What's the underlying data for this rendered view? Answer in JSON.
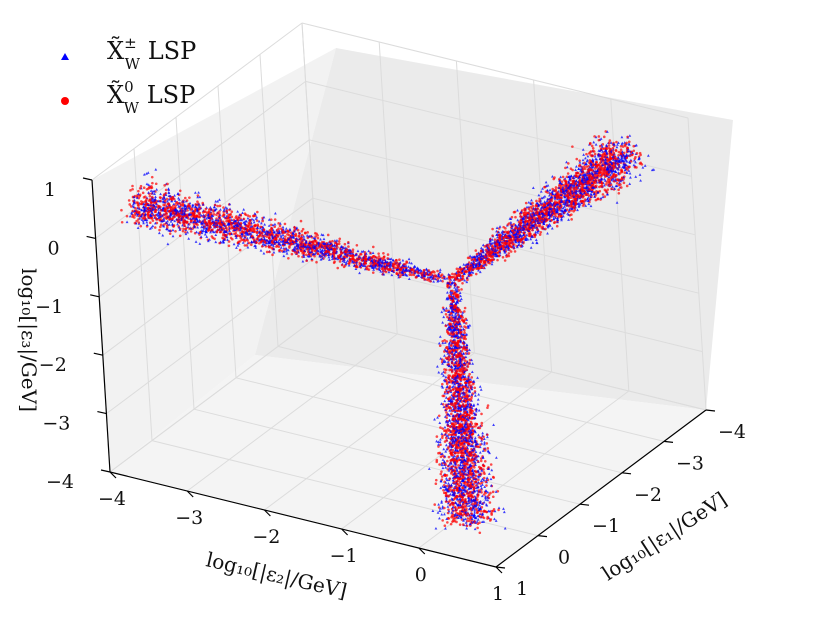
{
  "chart_data": {
    "type": "scatter",
    "projection": "3d",
    "grid": true,
    "legend_position": "top-left",
    "x_axis": {
      "label": "log₁₀[|ε₁|/GeV]",
      "range": [
        -4,
        1
      ],
      "ticks": [
        "−4",
        "−3",
        "−2",
        "−1",
        "0",
        "1"
      ]
    },
    "y_axis": {
      "label": "log₁₀[|ε₂|/GeV]",
      "range": [
        -4,
        1
      ],
      "ticks": [
        "−4",
        "−3",
        "−2",
        "−1",
        "0",
        "1"
      ]
    },
    "z_axis": {
      "label": "log₁₀[|ε₃|/GeV]",
      "range": [
        -4,
        1
      ],
      "ticks": [
        "−4",
        "−3",
        "−2",
        "−1",
        "0",
        "1"
      ]
    },
    "series": [
      {
        "name": "X̃±W LSP",
        "name_parts": {
          "base": "X̃",
          "sup": "±",
          "sub": "W",
          "suffix": " LSP"
        },
        "marker": "triangle",
        "color": "#0000ff",
        "branches": [
          {
            "fixed": "z",
            "near": 0.2,
            "from": -4,
            "to": 0.2
          },
          {
            "fixed": "x",
            "near": 0.2,
            "from": -4,
            "to": 0.2
          },
          {
            "fixed": "y",
            "near": 0.2,
            "from": -4,
            "to": 0.2
          }
        ]
      },
      {
        "name": "X̃0W LSP",
        "name_parts": {
          "base": "X̃",
          "sup": "0",
          "sub": "W",
          "suffix": " LSP"
        },
        "marker": "circle",
        "color": "#ff0000",
        "branches": [
          {
            "fixed": "z",
            "near": 0.2,
            "from": -4,
            "to": 0.2
          },
          {
            "fixed": "x",
            "near": 0.2,
            "from": -4,
            "to": 0.2
          },
          {
            "fixed": "y",
            "near": 0.2,
            "from": -4,
            "to": 0.2
          }
        ]
      }
    ]
  }
}
